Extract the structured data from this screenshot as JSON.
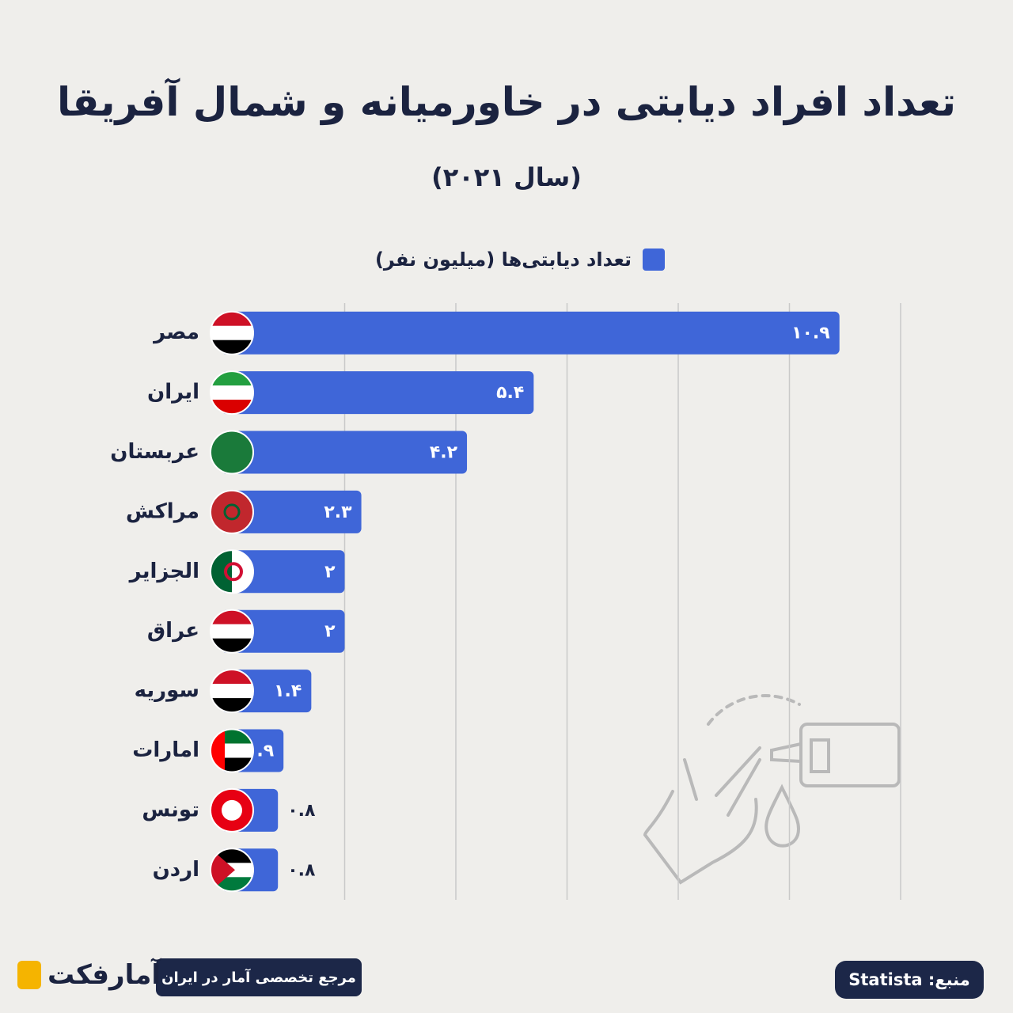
{
  "chart_data": {
    "type": "bar",
    "orientation": "horizontal",
    "title": "تعداد افراد دیابتی در خاورمیانه و شمال آفریقا",
    "subtitle": "(سال ۲۰۲۱)",
    "categories": [
      "مصر",
      "ایران",
      "عربستان",
      "مراکش",
      "الجزایر",
      "عراق",
      "سوریه",
      "امارات",
      "تونس",
      "اردن"
    ],
    "series": [
      {
        "name": "تعداد دیابتی‌ها (میلیون نفر)",
        "color": "#3f66d8",
        "values": [
          10.9,
          5.4,
          4.2,
          2.3,
          2,
          2,
          1.4,
          0.9,
          0.8,
          0.8
        ],
        "value_labels": [
          "۱۰.۹",
          "۵.۴",
          "۴.۲",
          "۲.۳",
          "۲",
          "۲",
          "۱.۴",
          "۰.۹",
          "۰.۸",
          "۰.۸"
        ]
      }
    ],
    "xlim": [
      0,
      12
    ],
    "xticks": [
      2,
      4,
      6,
      8,
      10,
      12
    ],
    "grid": true,
    "source": "منبع: Statista",
    "brand_tagline": "مرجع تخصصی آمار در ایران",
    "brand": "آمارفکت"
  }
}
